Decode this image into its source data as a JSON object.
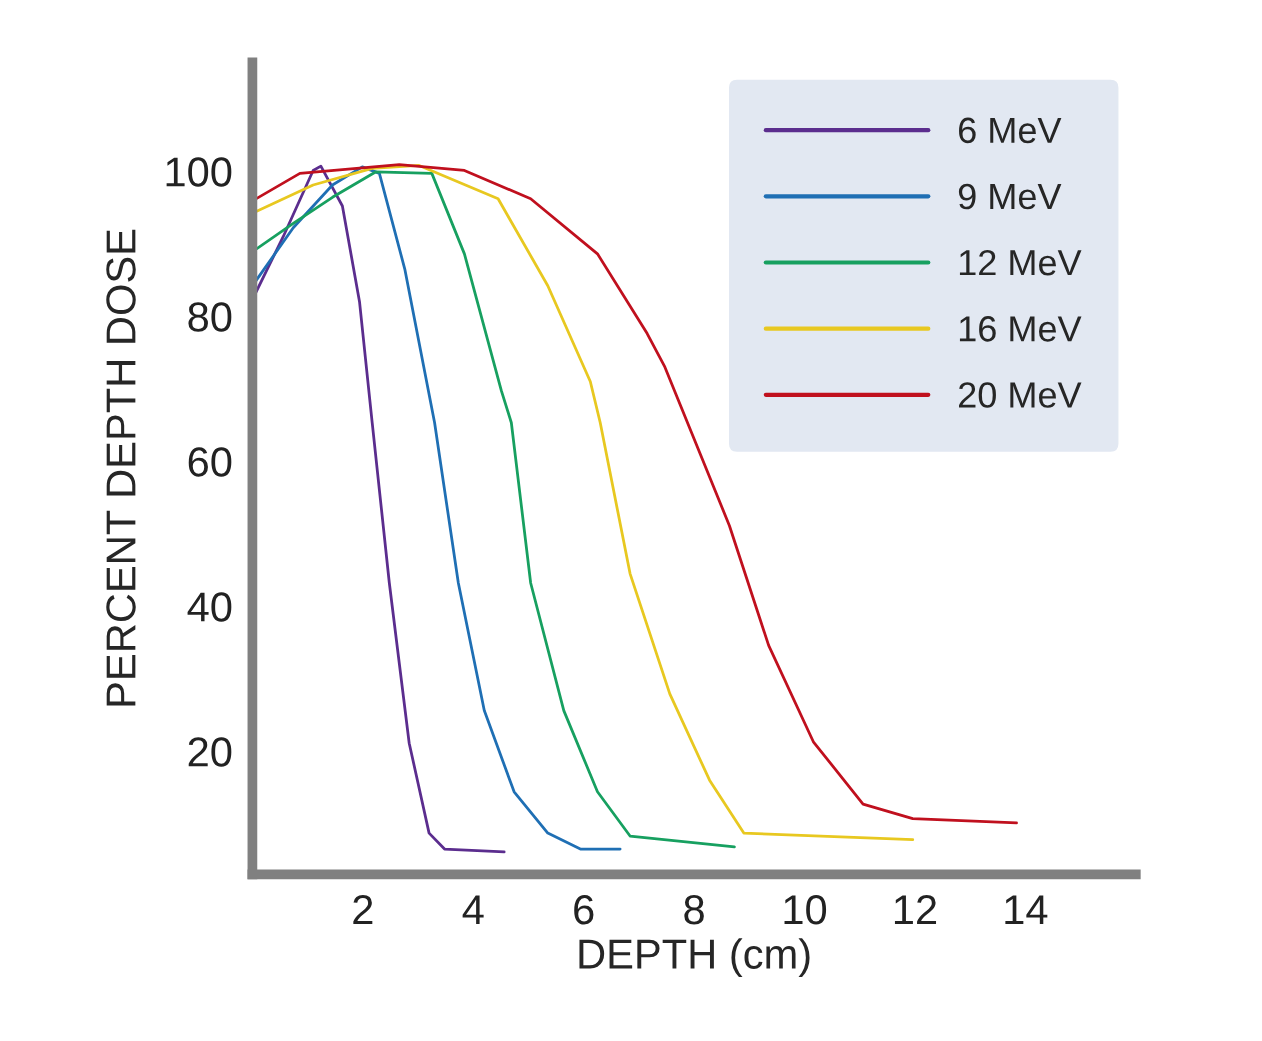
{
  "chart_data": {
    "type": "line",
    "xlabel": "DEPTH (cm)",
    "ylabel": "PERCENT DEPTH DOSE",
    "xlim": [
      0,
      16
    ],
    "ylim": [
      3,
      115
    ],
    "xticks": [
      2,
      4,
      6,
      8,
      10,
      12,
      14
    ],
    "yticks": [
      20,
      40,
      60,
      80,
      100
    ],
    "grid": false,
    "legend": "top right",
    "line_style": "solid",
    "series": [
      {
        "name": "6 MeV",
        "color": "#5b2d8e",
        "x": [
          0,
          0.56,
          1.1,
          1.24,
          1.63,
          1.94,
          2.17,
          2.48,
          2.84,
          3.2,
          3.48,
          4.56
        ],
        "values": [
          82.3,
          91,
          100.1,
          100.7,
          95.2,
          82,
          65.3,
          43.2,
          21.1,
          8.7,
          6.5,
          6.1
        ]
      },
      {
        "name": "9 MeV",
        "color": "#1f6fb4",
        "x": [
          0,
          0.74,
          1.45,
          1.99,
          2.3,
          2.76,
          3.3,
          3.73,
          4.2,
          4.74,
          5.35,
          5.94,
          6.66
        ],
        "values": [
          84.2,
          92.2,
          98.1,
          100.6,
          99.7,
          86.5,
          65.3,
          43.2,
          25.6,
          14.4,
          8.7,
          6.5,
          6.5
        ]
      },
      {
        "name": "12 MeV",
        "color": "#17a060",
        "x": [
          0,
          0.74,
          1.45,
          2.23,
          3.25,
          3.84,
          4.51,
          4.69,
          5.04,
          5.64,
          6.25,
          6.84,
          8.73
        ],
        "values": [
          88.9,
          92.8,
          96.4,
          99.9,
          99.7,
          88.6,
          69.7,
          65.3,
          43.2,
          25.6,
          14.4,
          8.3,
          6.8
        ]
      },
      {
        "name": "16 MeV",
        "color": "#e8c820",
        "x": [
          0,
          1.1,
          2.17,
          3.02,
          4.45,
          5.35,
          6.12,
          6.3,
          6.84,
          7.56,
          8.28,
          8.9,
          11.96
        ],
        "values": [
          94.2,
          98.1,
          100.4,
          100.8,
          96.2,
          84.2,
          71.0,
          65.3,
          44.5,
          27.9,
          16.0,
          8.7,
          7.8
        ]
      },
      {
        "name": "20 MeV",
        "color": "#c0101e",
        "x": [
          0,
          0.86,
          2.66,
          3.84,
          5.04,
          6.25,
          7.15,
          7.47,
          8.64,
          9.35,
          10.16,
          11.06,
          11.96,
          13.84
        ],
        "values": [
          95.9,
          99.7,
          100.9,
          100.1,
          96.2,
          88.6,
          77.6,
          73.0,
          51.1,
          34.6,
          21.3,
          12.7,
          10.7,
          10.1
        ]
      }
    ]
  }
}
